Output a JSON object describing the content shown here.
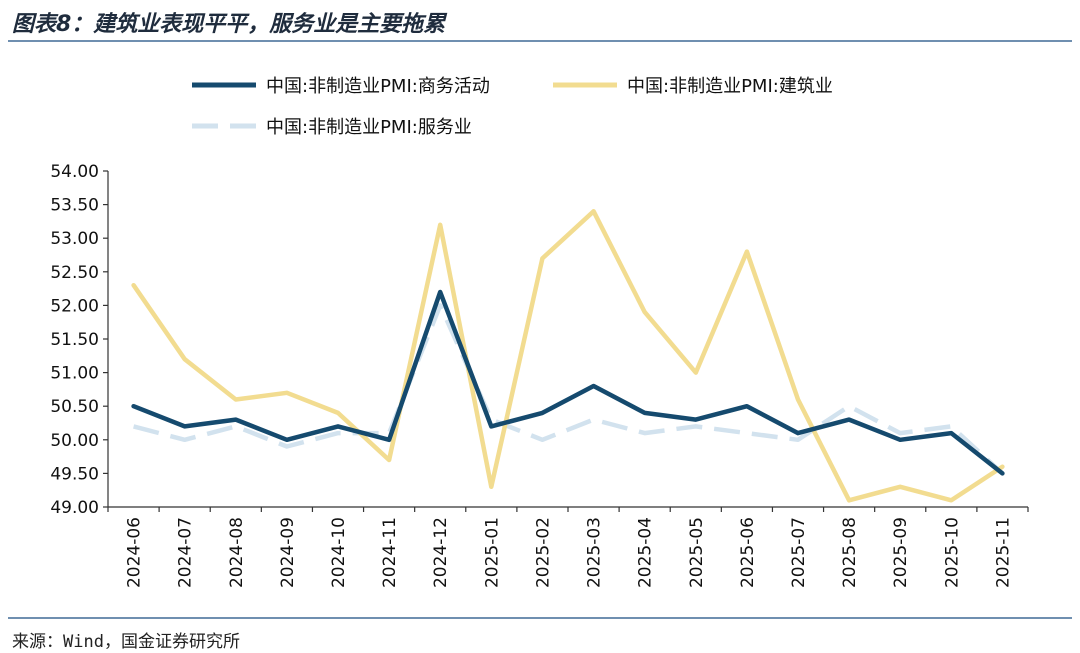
{
  "title": "图表8：建筑业表现平平，服务业是主要拖累",
  "source": "来源：Wind，国金证券研究所",
  "chart_data": {
    "type": "line",
    "title": "图表8：建筑业表现平平，服务业是主要拖累",
    "xlabel": "",
    "ylabel": "",
    "categories": [
      "2024-06",
      "2024-07",
      "2024-08",
      "2024-09",
      "2024-10",
      "2024-11",
      "2024-12",
      "2025-01",
      "2025-02",
      "2025-03",
      "2025-04",
      "2025-05",
      "2025-06",
      "2025-07",
      "2025-08",
      "2025-09",
      "2025-10",
      "2025-11"
    ],
    "ylim": [
      49.0,
      54.0
    ],
    "yticks": [
      "49.00",
      "49.50",
      "50.00",
      "50.50",
      "51.00",
      "51.50",
      "52.00",
      "52.50",
      "53.00",
      "53.50",
      "54.00"
    ],
    "legend_position": "top",
    "series": [
      {
        "name": "中国:非制造业PMI:商务活动",
        "color": "#154a6e",
        "style": "solid",
        "values": [
          50.5,
          50.2,
          50.3,
          50.0,
          50.2,
          50.0,
          52.2,
          50.2,
          50.4,
          50.8,
          50.4,
          50.3,
          50.5,
          50.1,
          50.3,
          50.0,
          50.1,
          49.5
        ]
      },
      {
        "name": "中国:非制造业PMI:建筑业",
        "color": "#f2dc90",
        "style": "solid",
        "values": [
          52.3,
          51.2,
          50.6,
          50.7,
          50.4,
          49.7,
          53.2,
          49.3,
          52.7,
          53.4,
          51.9,
          51.0,
          52.8,
          50.6,
          49.1,
          49.3,
          49.1,
          49.6
        ]
      },
      {
        "name": "中国:非制造业PMI:服务业",
        "color": "#d2e2ee",
        "style": "dashed",
        "values": [
          50.2,
          50.0,
          50.2,
          49.9,
          50.1,
          50.1,
          52.0,
          50.3,
          50.0,
          50.3,
          50.1,
          50.2,
          50.1,
          50.0,
          50.5,
          50.1,
          50.2,
          49.5
        ]
      }
    ]
  }
}
